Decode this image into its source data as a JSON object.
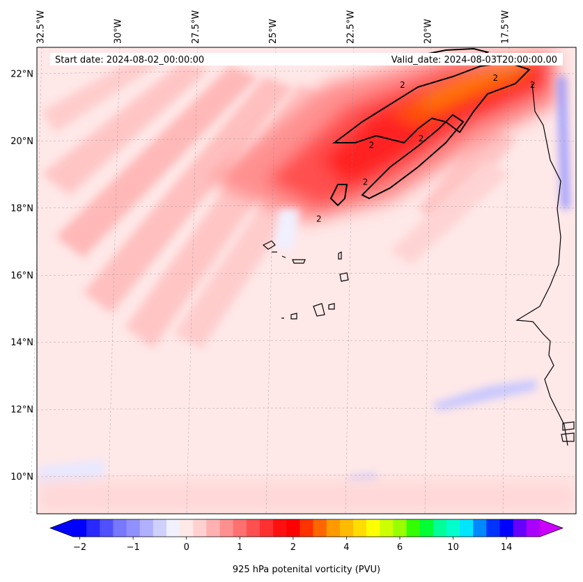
{
  "chart_data": {
    "type": "heatmap",
    "title_left": "Start date: 2024-08-02_00:00:00",
    "title_right": "Valid_date: 2024-08-03T20:00:00.00",
    "variable_label": "925 hPa potenital vorticity (PVU)",
    "lon_ticks": [
      "32.5°W",
      "30°W",
      "27.5°W",
      "25°W",
      "22.5°W",
      "20°W",
      "17.5°W"
    ],
    "lon_values": [
      -32.5,
      -30,
      -27.5,
      -25,
      -22.5,
      -20,
      -17.5
    ],
    "lat_ticks": [
      "22°N",
      "20°N",
      "18°N",
      "16°N",
      "14°N",
      "12°N",
      "10°N"
    ],
    "lat_values": [
      22,
      20,
      18,
      16,
      14,
      12,
      10
    ],
    "lon_range": [
      -32.6,
      -15.2
    ],
    "lat_range": [
      8.9,
      22.8
    ],
    "contour_level": 2,
    "contour_label": "2",
    "colorbar": {
      "extend": "both",
      "tick_labels": [
        "−2",
        "−1",
        "0",
        "1",
        "2",
        "4",
        "6",
        "10",
        "14"
      ],
      "colors": [
        "#0000ff",
        "#2828ff",
        "#5050ff",
        "#7878ff",
        "#9090ff",
        "#b0b0ff",
        "#d0d0ff",
        "#f0f0ff",
        "#ffe8e8",
        "#ffd0d0",
        "#ffb0b0",
        "#ff9090",
        "#ff7070",
        "#ff5050",
        "#ff3030",
        "#ff1010",
        "#ff0000",
        "#ff3300",
        "#ff6600",
        "#ff9900",
        "#ffbb00",
        "#ffdd00",
        "#ffff00",
        "#ccff00",
        "#99ff00",
        "#33ff00",
        "#00ff33",
        "#00ff99",
        "#00ffcc",
        "#00e5ff",
        "#0088ff",
        "#0033ff",
        "#0000ff",
        "#6600ff",
        "#aa00ff"
      ],
      "extend_low_color": "#0000ff",
      "extend_high_color": "#cc00ff"
    }
  }
}
